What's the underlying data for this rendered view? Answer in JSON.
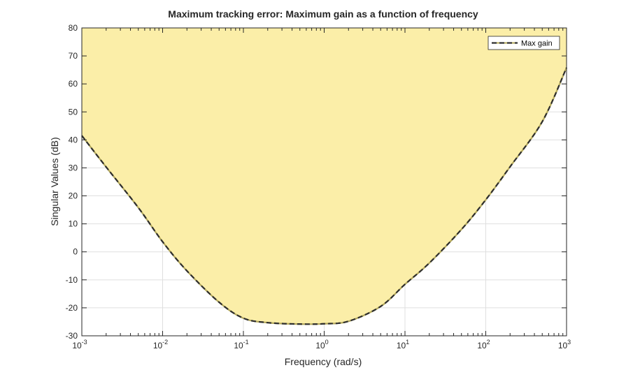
{
  "chart_data": {
    "type": "area",
    "title": "Maximum tracking error: Maximum gain as a function of frequency",
    "xlabel": "Frequency (rad/s)",
    "ylabel": "Singular Values (dB)",
    "xscale": "log",
    "xlim": [
      0.001,
      1000
    ],
    "ylim": [
      -30,
      80
    ],
    "x_ticks": [
      {
        "base": "10",
        "exp": "-3",
        "value": 0.001
      },
      {
        "base": "10",
        "exp": "-2",
        "value": 0.01
      },
      {
        "base": "10",
        "exp": "-1",
        "value": 0.1
      },
      {
        "base": "10",
        "exp": "0",
        "value": 1
      },
      {
        "base": "10",
        "exp": "1",
        "value": 10
      },
      {
        "base": "10",
        "exp": "2",
        "value": 100
      },
      {
        "base": "10",
        "exp": "3",
        "value": 1000
      }
    ],
    "y_ticks": [
      -30,
      -20,
      -10,
      0,
      10,
      20,
      30,
      40,
      50,
      60,
      70,
      80
    ],
    "grid": true,
    "legend": {
      "entries": [
        "Max gain"
      ],
      "position": "top-right"
    },
    "series": [
      {
        "name": "Max gain",
        "line_style": "dashed",
        "shaded_region": "above",
        "x": [
          0.001,
          0.002,
          0.005,
          0.01,
          0.02,
          0.05,
          0.1,
          0.2,
          0.5,
          1,
          2,
          5,
          10,
          20,
          50,
          100,
          200,
          500,
          1000
        ],
        "y": [
          41.5,
          30.3,
          15.8,
          3.6,
          -6.8,
          -18.0,
          -23.7,
          -25.3,
          -25.8,
          -25.7,
          -24.8,
          -19.5,
          -11.6,
          -4.0,
          8.0,
          18.6,
          30.4,
          46.5,
          65.8
        ]
      }
    ],
    "colors": {
      "fill": "#fbeea8",
      "line_dark": "#2e2e2e",
      "line_light": "#b3a85a",
      "grid": "#dfdfdf",
      "axis": "#262626"
    }
  }
}
